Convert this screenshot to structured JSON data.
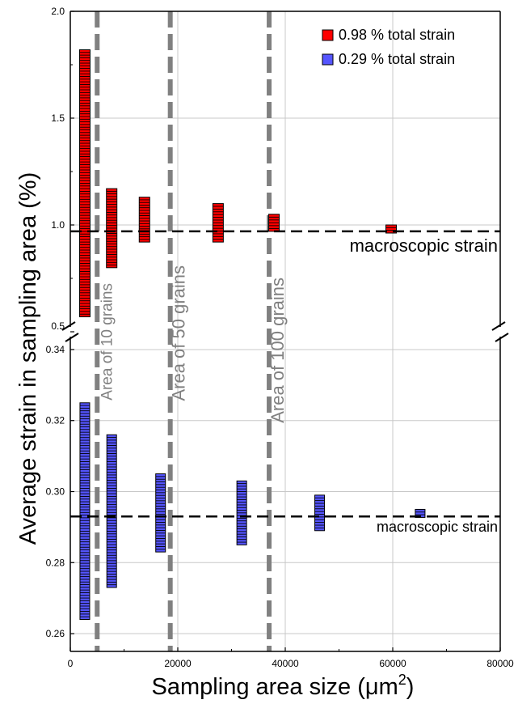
{
  "chart_data": {
    "type": "scatter",
    "xlabel": "Sampling area size (μm",
    "xlabel_sup": "2",
    "xlabel_close": ")",
    "ylabel": "Average strain in sampling area (%)",
    "x_ticks": [
      "0",
      "20000",
      "40000",
      "60000",
      "80000"
    ],
    "xlim": [
      0,
      80000
    ],
    "grid": true,
    "legend_position": "top-right",
    "panels": [
      {
        "name": "upper",
        "ylim": [
          0.5,
          2.0
        ],
        "y_ticks": [
          "0.5",
          "1.0",
          "1.5",
          "2.0"
        ]
      },
      {
        "name": "lower",
        "ylim": [
          0.255,
          0.345
        ],
        "y_ticks": [
          "0.26",
          "0.28",
          "0.30",
          "0.32",
          "0.34"
        ]
      }
    ],
    "series": [
      {
        "name": "0.98 % total strain",
        "color": "#ff0000",
        "panel": "upper",
        "groups": [
          {
            "x": 2700,
            "ymin": 0.57,
            "ymax": 1.82
          },
          {
            "x": 7700,
            "ymin": 0.8,
            "ymax": 1.17
          },
          {
            "x": 13800,
            "ymin": 0.92,
            "ymax": 1.13
          },
          {
            "x": 27500,
            "ymin": 0.92,
            "ymax": 1.1
          },
          {
            "x": 37900,
            "ymin": 0.97,
            "ymax": 1.05
          },
          {
            "x": 59700,
            "ymin": 0.97,
            "ymax": 1.0
          }
        ]
      },
      {
        "name": "0.29 % total strain",
        "color": "#5555ff",
        "panel": "lower",
        "groups": [
          {
            "x": 2700,
            "ymin": 0.264,
            "ymax": 0.325
          },
          {
            "x": 7700,
            "ymin": 0.273,
            "ymax": 0.316
          },
          {
            "x": 16800,
            "ymin": 0.283,
            "ymax": 0.305
          },
          {
            "x": 31900,
            "ymin": 0.285,
            "ymax": 0.303
          },
          {
            "x": 46400,
            "ymin": 0.289,
            "ymax": 0.299
          },
          {
            "x": 65100,
            "ymin": 0.293,
            "ymax": 0.295
          }
        ]
      }
    ],
    "reference_lines": [
      {
        "panel": "upper",
        "y": 0.97,
        "label": "macroscopic strain"
      },
      {
        "panel": "lower",
        "y": 0.293,
        "label": "macroscopic strain"
      }
    ],
    "vertical_lines": [
      {
        "x": 5000,
        "label": "Area of 10 grains"
      },
      {
        "x": 18600,
        "label": "Area of 50 grains"
      },
      {
        "x": 37000,
        "label": "Area of 100 grains"
      }
    ],
    "colors": {
      "vertical_line": "#808080",
      "grid": "#c8c8c8"
    }
  }
}
